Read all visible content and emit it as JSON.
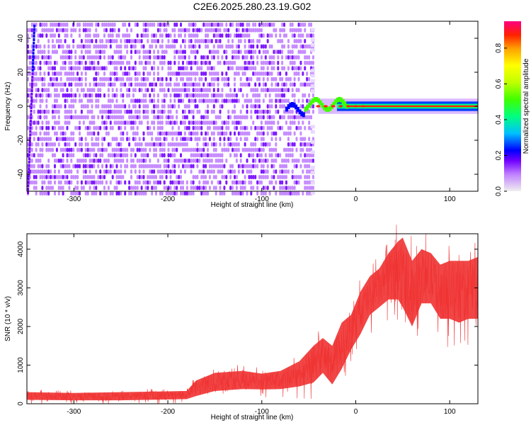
{
  "chart_data": [
    {
      "type": "heatmap",
      "title": "C2E6.2025.280.23.19.G02",
      "xlabel": "Height of straight line (km)",
      "ylabel": "Frequency (Hz)",
      "xlim": [
        -350,
        130
      ],
      "ylim": [
        -50,
        50
      ],
      "xticks": [
        "-300",
        "-200",
        "-100",
        "0",
        "100"
      ],
      "yticks": [
        "-40",
        "-20",
        "0",
        "20",
        "40"
      ],
      "grid": false,
      "colorbar": {
        "label": "Normalized spectral amplitude",
        "range": [
          0.0,
          0.95
        ],
        "ticks": [
          "0.0",
          "0.2",
          "0.4",
          "0.6",
          "0.8"
        ],
        "colormap": [
          "#f0f0f0",
          "#c080ff",
          "#7000ff",
          "#0000ff",
          "#00c0ff",
          "#00ff80",
          "#40ff00",
          "#c0ff00",
          "#ffff00",
          "#ffa000",
          "#ff2000",
          "#ff0080"
        ]
      },
      "features": [
        {
          "desc": "diffuse noise",
          "x_range": [
            -350,
            -45
          ],
          "y_range": [
            -50,
            50
          ],
          "amplitude": 0.25
        },
        {
          "desc": "signal line",
          "x_range": [
            -75,
            130
          ],
          "frequency_hz": 0,
          "amplitude_peak": 0.95
        },
        {
          "desc": "early line",
          "x_range": [
            -350,
            -342
          ],
          "y_range": [
            -50,
            50
          ],
          "amplitude": 0.3
        }
      ]
    },
    {
      "type": "area",
      "xlabel": "Height of straight line (km)",
      "ylabel": "SNR (10 * v/v)",
      "xlim": [
        -350,
        130
      ],
      "ylim": [
        0,
        4400
      ],
      "xticks": [
        "-300",
        "-200",
        "-100",
        "0",
        "100"
      ],
      "yticks": [
        "0",
        "1000",
        "2000",
        "3000",
        "4000"
      ],
      "grid": false,
      "series_color": "#f03232",
      "envelope": {
        "x": [
          -350,
          -300,
          -250,
          -200,
          -180,
          -170,
          -150,
          -120,
          -100,
          -80,
          -60,
          -45,
          -35,
          -25,
          -15,
          -5,
          5,
          15,
          25,
          35,
          45,
          50,
          60,
          70,
          80,
          90,
          100,
          110,
          120,
          130
        ],
        "lower": [
          100,
          90,
          90,
          110,
          120,
          200,
          330,
          380,
          370,
          380,
          450,
          550,
          800,
          500,
          900,
          1400,
          1800,
          2300,
          2500,
          2700,
          2700,
          2500,
          2000,
          2600,
          2600,
          2200,
          2200,
          2100,
          2200,
          2200
        ],
        "upper": [
          300,
          280,
          300,
          320,
          330,
          600,
          800,
          850,
          780,
          850,
          1100,
          1500,
          1700,
          1500,
          2100,
          2300,
          2900,
          3300,
          3500,
          3900,
          4200,
          4300,
          3700,
          4000,
          3900,
          3600,
          3700,
          3700,
          3700,
          3800
        ]
      }
    }
  ]
}
